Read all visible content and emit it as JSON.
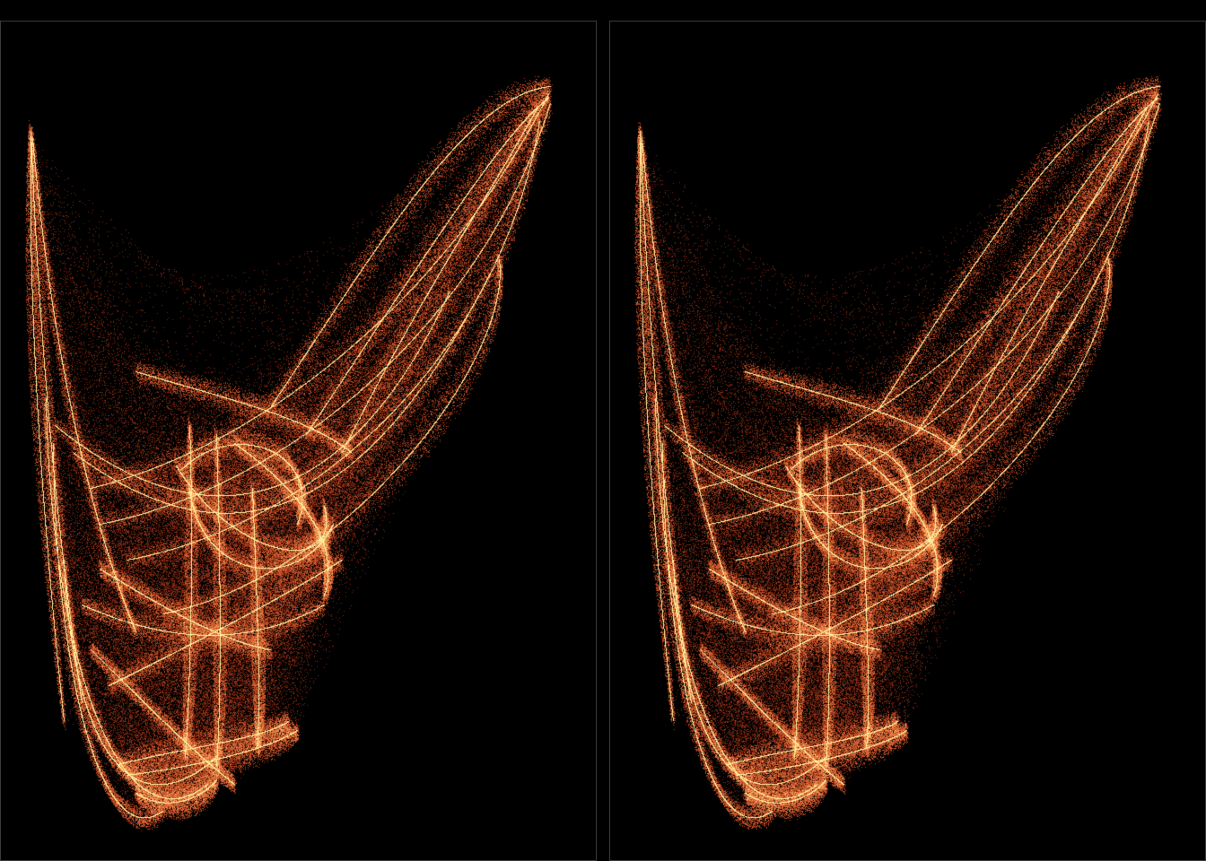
{
  "scene": {
    "description_free": true,
    "background_color": "#000000",
    "panel_border_color": "#3a3a3a",
    "palette": [
      "#5a1608",
      "#9a3418",
      "#d0582c",
      "#f08a4a",
      "#ffc070",
      "#fff0a0"
    ],
    "panels": [
      {
        "id": "left",
        "subject": "strange-attractor"
      },
      {
        "id": "right",
        "subject": "strange-attractor"
      }
    ]
  }
}
